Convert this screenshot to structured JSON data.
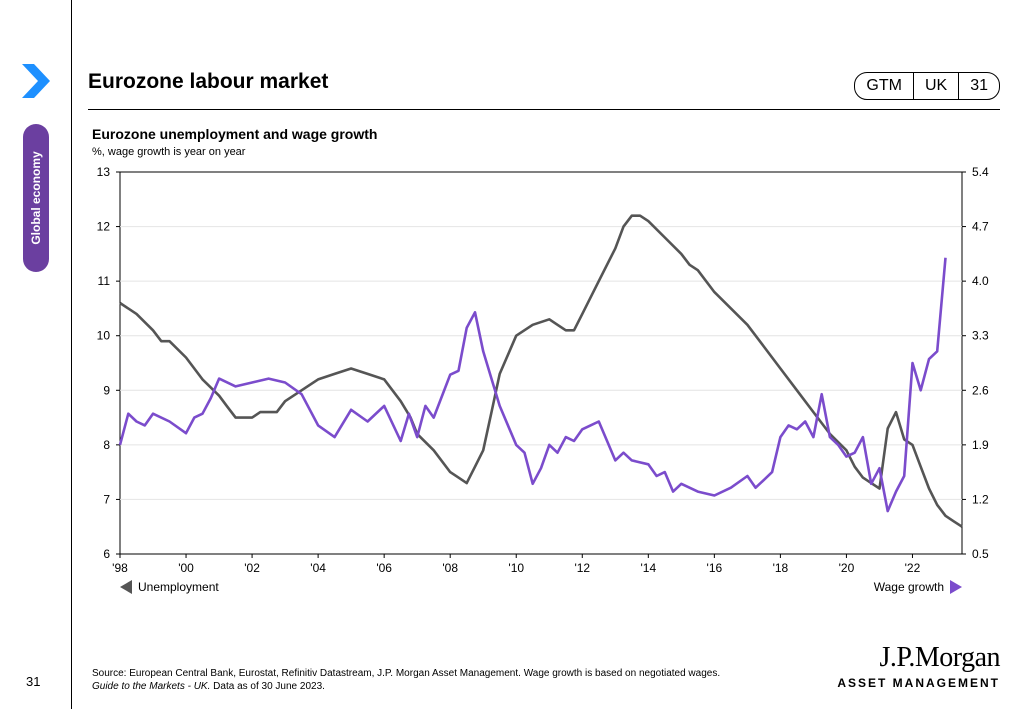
{
  "header": {
    "title": "Eurozone labour market",
    "badge": [
      "GTM",
      "UK",
      "31"
    ],
    "section": "Global economy"
  },
  "footer": {
    "page_number": "31",
    "source_line1": "Source: European Central Bank, Eurostat, Refinitiv Datastream, J.P. Morgan Asset Management. Wage growth is based on negotiated wages.",
    "source_guide": "Guide to the Markets - UK.",
    "source_date": " Data as of 30 June 2023.",
    "logo_top": "J.P.Morgan",
    "logo_bottom": "ASSET MANAGEMENT"
  },
  "colors": {
    "unemployment": "#555555",
    "wage": "#7b4ccc",
    "accent": "#6b3fa0",
    "chevron": "#1e90ff"
  },
  "chart_data": {
    "type": "line",
    "title": "Eurozone unemployment and wage growth",
    "subtitle": "%, wage growth is year on year",
    "xlim": [
      1998,
      2023.5
    ],
    "x_ticks": [
      1998,
      2000,
      2002,
      2004,
      2006,
      2008,
      2010,
      2012,
      2014,
      2016,
      2018,
      2020,
      2022
    ],
    "x_tick_labels": [
      "'98",
      "'00",
      "'02",
      "'04",
      "'06",
      "'08",
      "'10",
      "'12",
      "'14",
      "'16",
      "'18",
      "'20",
      "'22"
    ],
    "ylim_left": [
      6,
      13
    ],
    "y_ticks_left": [
      "6",
      "7",
      "8",
      "9",
      "10",
      "11",
      "12",
      "13"
    ],
    "ylim_right": [
      0.5,
      5.4
    ],
    "y_ticks_right": [
      "0.5",
      "1.2",
      "1.9",
      "2.6",
      "3.3",
      "4.0",
      "4.7",
      "5.4"
    ],
    "legend": {
      "left": "Unemployment",
      "right": "Wage growth"
    },
    "series": [
      {
        "name": "Unemployment",
        "axis": "left",
        "points": [
          [
            1998,
            10.6
          ],
          [
            1998.5,
            10.4
          ],
          [
            1999,
            10.1
          ],
          [
            1999.25,
            9.9
          ],
          [
            1999.5,
            9.9
          ],
          [
            2000,
            9.6
          ],
          [
            2000.5,
            9.2
          ],
          [
            2001,
            8.9
          ],
          [
            2001.25,
            8.7
          ],
          [
            2001.5,
            8.5
          ],
          [
            2002,
            8.5
          ],
          [
            2002.25,
            8.6
          ],
          [
            2002.75,
            8.6
          ],
          [
            2003,
            8.8
          ],
          [
            2003.5,
            9.0
          ],
          [
            2004,
            9.2
          ],
          [
            2004.5,
            9.3
          ],
          [
            2005,
            9.4
          ],
          [
            2005.5,
            9.3
          ],
          [
            2006,
            9.2
          ],
          [
            2006.5,
            8.8
          ],
          [
            2006.8,
            8.5
          ],
          [
            2007,
            8.2
          ],
          [
            2007.5,
            7.9
          ],
          [
            2008,
            7.5
          ],
          [
            2008.25,
            7.4
          ],
          [
            2008.5,
            7.3
          ],
          [
            2008.75,
            7.6
          ],
          [
            2009,
            7.9
          ],
          [
            2009.25,
            8.6
          ],
          [
            2009.5,
            9.3
          ],
          [
            2010,
            10.0
          ],
          [
            2010.5,
            10.2
          ],
          [
            2011,
            10.3
          ],
          [
            2011.25,
            10.2
          ],
          [
            2011.5,
            10.1
          ],
          [
            2011.75,
            10.1
          ],
          [
            2012,
            10.4
          ],
          [
            2012.5,
            11.0
          ],
          [
            2013,
            11.6
          ],
          [
            2013.25,
            12.0
          ],
          [
            2013.5,
            12.2
          ],
          [
            2013.75,
            12.2
          ],
          [
            2014,
            12.1
          ],
          [
            2014.5,
            11.8
          ],
          [
            2015,
            11.5
          ],
          [
            2015.25,
            11.3
          ],
          [
            2015.5,
            11.2
          ],
          [
            2016,
            10.8
          ],
          [
            2016.5,
            10.5
          ],
          [
            2017,
            10.2
          ],
          [
            2017.5,
            9.8
          ],
          [
            2018,
            9.4
          ],
          [
            2018.5,
            9.0
          ],
          [
            2019,
            8.6
          ],
          [
            2019.5,
            8.2
          ],
          [
            2020,
            7.9
          ],
          [
            2020.25,
            7.6
          ],
          [
            2020.5,
            7.4
          ],
          [
            2020.75,
            7.3
          ],
          [
            2021,
            7.2
          ],
          [
            2021.25,
            8.3
          ],
          [
            2021.5,
            8.6
          ],
          [
            2021.75,
            8.1
          ],
          [
            2022,
            8.0
          ],
          [
            2022.25,
            7.6
          ],
          [
            2022.5,
            7.2
          ],
          [
            2022.75,
            6.9
          ],
          [
            2023,
            6.7
          ],
          [
            2023.25,
            6.6
          ],
          [
            2023.5,
            6.5
          ]
        ]
      },
      {
        "name": "Wage growth",
        "axis": "right",
        "points": [
          [
            1998,
            1.9
          ],
          [
            1998.25,
            2.3
          ],
          [
            1998.5,
            2.2
          ],
          [
            1998.75,
            2.15
          ],
          [
            1999,
            2.3
          ],
          [
            1999.5,
            2.2
          ],
          [
            2000,
            2.05
          ],
          [
            2000.25,
            2.25
          ],
          [
            2000.5,
            2.3
          ],
          [
            2000.75,
            2.5
          ],
          [
            2001,
            2.75
          ],
          [
            2001.5,
            2.65
          ],
          [
            2002,
            2.7
          ],
          [
            2002.5,
            2.75
          ],
          [
            2003,
            2.7
          ],
          [
            2003.5,
            2.55
          ],
          [
            2004,
            2.15
          ],
          [
            2004.5,
            2.0
          ],
          [
            2005,
            2.35
          ],
          [
            2005.5,
            2.2
          ],
          [
            2006,
            2.4
          ],
          [
            2006.5,
            1.95
          ],
          [
            2006.75,
            2.3
          ],
          [
            2007,
            2.0
          ],
          [
            2007.25,
            2.4
          ],
          [
            2007.5,
            2.25
          ],
          [
            2008,
            2.8
          ],
          [
            2008.25,
            2.85
          ],
          [
            2008.5,
            3.4
          ],
          [
            2008.75,
            3.6
          ],
          [
            2009,
            3.1
          ],
          [
            2009.5,
            2.4
          ],
          [
            2010,
            1.9
          ],
          [
            2010.25,
            1.8
          ],
          [
            2010.5,
            1.4
          ],
          [
            2010.75,
            1.6
          ],
          [
            2011,
            1.9
          ],
          [
            2011.25,
            1.8
          ],
          [
            2011.5,
            2.0
          ],
          [
            2011.75,
            1.95
          ],
          [
            2012,
            2.1
          ],
          [
            2012.25,
            2.15
          ],
          [
            2012.5,
            2.2
          ],
          [
            2013,
            1.7
          ],
          [
            2013.25,
            1.8
          ],
          [
            2013.5,
            1.7
          ],
          [
            2014,
            1.65
          ],
          [
            2014.25,
            1.5
          ],
          [
            2014.5,
            1.55
          ],
          [
            2014.75,
            1.3
          ],
          [
            2015,
            1.4
          ],
          [
            2015.5,
            1.3
          ],
          [
            2016,
            1.25
          ],
          [
            2016.5,
            1.35
          ],
          [
            2017,
            1.5
          ],
          [
            2017.25,
            1.35
          ],
          [
            2017.5,
            1.45
          ],
          [
            2017.75,
            1.55
          ],
          [
            2018,
            2.0
          ],
          [
            2018.25,
            2.15
          ],
          [
            2018.5,
            2.1
          ],
          [
            2018.75,
            2.2
          ],
          [
            2019,
            2.0
          ],
          [
            2019.25,
            2.55
          ],
          [
            2019.5,
            2.0
          ],
          [
            2019.75,
            1.9
          ],
          [
            2020,
            1.75
          ],
          [
            2020.25,
            1.8
          ],
          [
            2020.5,
            2.0
          ],
          [
            2020.75,
            1.4
          ],
          [
            2021,
            1.6
          ],
          [
            2021.25,
            1.05
          ],
          [
            2021.5,
            1.3
          ],
          [
            2021.75,
            1.5
          ],
          [
            2022,
            2.95
          ],
          [
            2022.25,
            2.6
          ],
          [
            2022.5,
            3.0
          ],
          [
            2022.75,
            3.1
          ],
          [
            2023,
            4.3
          ]
        ]
      }
    ]
  }
}
